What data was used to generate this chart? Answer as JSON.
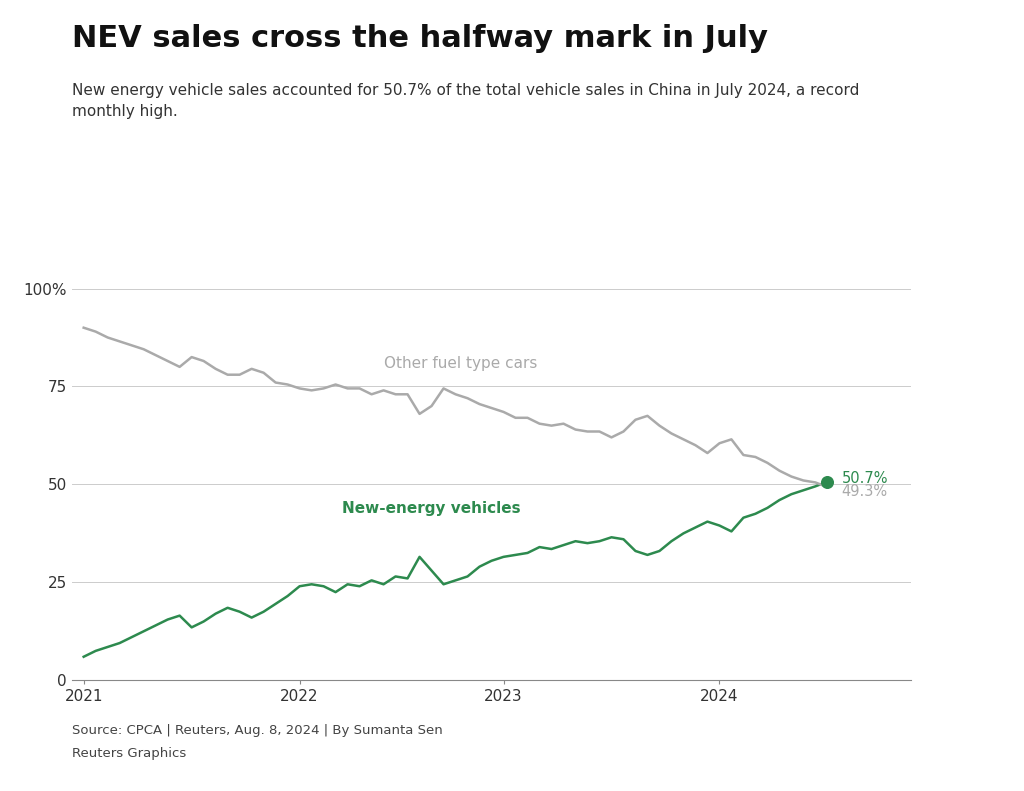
{
  "title": "NEV sales cross the halfway mark in July",
  "subtitle": "New energy vehicle sales accounted for 50.7% of the total vehicle sales in China in July 2024, a record\nmonthly high.",
  "source": "Source: CPCA | Reuters, Aug. 8, 2024 | By Sumanta Sen",
  "source2": "Reuters Graphics",
  "background_color": "#ffffff",
  "nev_color": "#2d8a4e",
  "fuel_color": "#aaaaaa",
  "nev_label": "New-energy vehicles",
  "fuel_label": "Other fuel type cars",
  "end_label_nev": "50.7%",
  "end_label_fuel": "49.3%",
  "nev_data": [
    6.0,
    7.5,
    8.5,
    9.5,
    11.0,
    12.5,
    14.0,
    15.5,
    16.5,
    13.5,
    15.0,
    17.0,
    18.5,
    17.5,
    16.0,
    17.5,
    19.5,
    21.5,
    24.0,
    24.5,
    24.0,
    22.5,
    24.5,
    24.0,
    25.5,
    24.5,
    26.5,
    26.0,
    31.5,
    28.0,
    24.5,
    25.5,
    26.5,
    29.0,
    30.5,
    31.5,
    32.0,
    32.5,
    34.0,
    33.5,
    34.5,
    35.5,
    35.0,
    35.5,
    36.5,
    36.0,
    33.0,
    32.0,
    33.0,
    35.5,
    37.5,
    39.0,
    40.5,
    39.5,
    38.0,
    41.5,
    42.5,
    44.0,
    46.0,
    47.5,
    48.5,
    49.5,
    50.7
  ],
  "fuel_data": [
    90.0,
    89.0,
    87.5,
    86.5,
    85.5,
    84.5,
    83.0,
    81.5,
    80.0,
    82.5,
    81.5,
    79.5,
    78.0,
    78.0,
    79.5,
    78.5,
    76.0,
    75.5,
    74.5,
    74.0,
    74.5,
    75.5,
    74.5,
    74.5,
    73.0,
    74.0,
    73.0,
    73.0,
    68.0,
    70.0,
    74.5,
    73.0,
    72.0,
    70.5,
    69.5,
    68.5,
    67.0,
    67.0,
    65.5,
    65.0,
    65.5,
    64.0,
    63.5,
    63.5,
    62.0,
    63.5,
    66.5,
    67.5,
    65.0,
    63.0,
    61.5,
    60.0,
    58.0,
    60.5,
    61.5,
    57.5,
    57.0,
    55.5,
    53.5,
    52.0,
    51.0,
    50.5,
    49.3
  ]
}
